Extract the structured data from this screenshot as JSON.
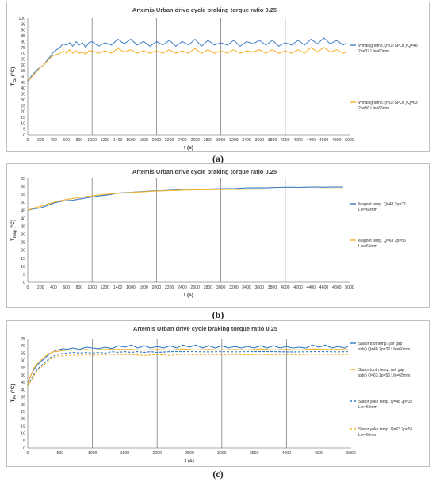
{
  "captions": [
    "(a)",
    "(b)",
    "(c)"
  ],
  "chart_data": [
    {
      "type": "line",
      "title": "Artemis Urban drive cycle braking torque ratio 0.25",
      "xlabel": "t (s)",
      "ylabel": "T_Cu (°C)",
      "xlim": [
        0,
        5000
      ],
      "ylim": [
        0,
        100
      ],
      "xticks": [
        0,
        200,
        400,
        600,
        800,
        1000,
        1200,
        1400,
        1600,
        1800,
        2000,
        2200,
        2400,
        2600,
        2800,
        3000,
        3200,
        3400,
        3600,
        3800,
        4000,
        4200,
        4400,
        4600,
        4800,
        5000
      ],
      "yticks": [
        0,
        5,
        10,
        15,
        20,
        25,
        30,
        35,
        40,
        45,
        50,
        55,
        60,
        65,
        70,
        75,
        80,
        85,
        90,
        95,
        100
      ],
      "vlines": [
        1000,
        2000,
        3000,
        4000
      ],
      "grid": false,
      "legend": "right",
      "series": [
        {
          "name": "Winding temp. (HOTSPOT) Q=48 2p=32 Lfe=60mm",
          "color": "#4a86c8",
          "x": [
            0,
            50,
            100,
            150,
            200,
            250,
            300,
            350,
            400,
            450,
            500,
            550,
            600,
            650,
            700,
            750,
            800,
            850,
            900,
            950,
            1000,
            1100,
            1200,
            1300,
            1400,
            1500,
            1600,
            1700,
            1800,
            1900,
            2000,
            2100,
            2200,
            2300,
            2400,
            2500,
            2600,
            2700,
            2800,
            2900,
            3000,
            3100,
            3200,
            3300,
            3400,
            3500,
            3600,
            3700,
            3800,
            3900,
            4000,
            4100,
            4200,
            4300,
            4400,
            4500,
            4600,
            4700,
            4800,
            4900,
            4950
          ],
          "y": [
            46,
            50,
            53,
            56,
            58,
            60,
            64,
            67,
            71,
            73,
            75,
            78,
            77,
            79,
            76,
            80,
            77,
            79,
            75,
            79,
            80,
            76,
            79,
            77,
            82,
            78,
            82,
            77,
            80,
            76,
            80,
            77,
            81,
            76,
            80,
            77,
            82,
            76,
            81,
            77,
            79,
            77,
            81,
            76,
            80,
            78,
            81,
            77,
            81,
            76,
            79,
            77,
            81,
            77,
            82,
            78,
            83,
            78,
            81,
            77,
            79
          ]
        },
        {
          "name": "Winding temp. (HOTSPOT) Q=63 2p=56 Lfe=65mm",
          "color": "#f5b22e",
          "x": [
            0,
            50,
            100,
            150,
            200,
            250,
            300,
            350,
            400,
            450,
            500,
            550,
            600,
            650,
            700,
            750,
            800,
            850,
            900,
            950,
            1000,
            1100,
            1200,
            1300,
            1400,
            1500,
            1600,
            1700,
            1800,
            1900,
            2000,
            2100,
            2200,
            2300,
            2400,
            2500,
            2600,
            2700,
            2800,
            2900,
            3000,
            3100,
            3200,
            3300,
            3400,
            3500,
            3600,
            3700,
            3800,
            3900,
            4000,
            4100,
            4200,
            4300,
            4400,
            4500,
            4600,
            4700,
            4800,
            4900,
            4950
          ],
          "y": [
            45,
            49,
            52,
            55,
            58,
            60,
            63,
            66,
            68,
            69,
            70,
            72,
            70,
            73,
            70,
            72,
            70,
            71,
            69,
            72,
            72,
            70,
            72,
            70,
            74,
            71,
            73,
            70,
            72,
            70,
            72,
            70,
            73,
            70,
            72,
            70,
            74,
            70,
            73,
            70,
            72,
            70,
            73,
            70,
            72,
            71,
            73,
            70,
            73,
            70,
            72,
            70,
            73,
            70,
            75,
            71,
            75,
            71,
            73,
            70,
            71
          ]
        }
      ]
    },
    {
      "type": "line",
      "title": "Artemis Urban drive cycle braking torque ratio 0.25",
      "xlabel": "t (s)",
      "ylabel": "T_mag (°C)",
      "xlim": [
        0,
        5000
      ],
      "ylim": [
        0,
        65
      ],
      "xticks": [
        0,
        200,
        400,
        600,
        800,
        1000,
        1200,
        1400,
        1600,
        1800,
        2000,
        2200,
        2400,
        2600,
        2800,
        3000,
        3200,
        3400,
        3600,
        3800,
        4000,
        4200,
        4400,
        4600,
        4800,
        5000
      ],
      "yticks": [
        0,
        5,
        10,
        15,
        20,
        25,
        30,
        35,
        40,
        45,
        50,
        55,
        60,
        65
      ],
      "vlines": [
        1000,
        2000,
        3000,
        4000
      ],
      "grid": false,
      "legend": "right",
      "series": [
        {
          "name": "Magnet temp. Q=48 2p=32 Lfe=60mm",
          "color": "#3b7bbf",
          "x": [
            0,
            100,
            200,
            300,
            400,
            500,
            600,
            700,
            800,
            900,
            1000,
            1100,
            1200,
            1300,
            1400,
            1500,
            1600,
            1700,
            1800,
            1900,
            2000,
            2100,
            2200,
            2300,
            2400,
            2500,
            2600,
            2700,
            2800,
            2900,
            3000,
            3100,
            3200,
            3300,
            3400,
            3500,
            3600,
            3700,
            3800,
            3900,
            4000,
            4100,
            4200,
            4300,
            4400,
            4500,
            4600,
            4700,
            4800,
            4900
          ],
          "y": [
            45,
            46,
            46.5,
            48,
            49.5,
            50.5,
            51,
            51.3,
            52,
            52.7,
            53.3,
            54,
            54.4,
            55,
            55.8,
            56,
            56.2,
            56.5,
            56.8,
            57,
            57.2,
            57.3,
            57.5,
            57.8,
            58.2,
            58.2,
            58,
            58.3,
            58.3,
            58.4,
            58.5,
            58.5,
            58.6,
            58.8,
            59,
            59,
            59.1,
            59,
            59.2,
            59.3,
            59.4,
            59.4,
            59.3,
            59.4,
            59.5,
            59.5,
            59.4,
            59.5,
            59.5,
            59.5
          ]
        },
        {
          "name": "Magnet temp. Q=63 2p=56 Lfe=65mm",
          "color": "#f5b22e",
          "x": [
            0,
            100,
            200,
            300,
            400,
            500,
            600,
            700,
            800,
            900,
            1000,
            1100,
            1200,
            1300,
            1400,
            1500,
            1600,
            1700,
            1800,
            1900,
            2000,
            2200,
            2400,
            2600,
            2800,
            3000,
            3200,
            3400,
            3600,
            3800,
            4000,
            4200,
            4400,
            4600,
            4800,
            4900
          ],
          "y": [
            45,
            46.5,
            47.5,
            48.8,
            50,
            51,
            51.8,
            52.4,
            53,
            53.6,
            54.1,
            54.6,
            55,
            55.3,
            55.6,
            55.9,
            56.1,
            56.4,
            56.6,
            56.8,
            57,
            57.3,
            57.6,
            57.8,
            57.9,
            58,
            58.1,
            58.2,
            58.2,
            58.3,
            58.3,
            58.3,
            58.3,
            58.4,
            58.4,
            58.4
          ]
        }
      ]
    },
    {
      "type": "line",
      "title": "Artemis Urban drive cycle braking torque ratio 0.25",
      "xlabel": "t (s)",
      "ylabel": "T_Fe (°C)",
      "xlim": [
        0,
        5000
      ],
      "ylim": [
        0,
        75
      ],
      "xticks": [
        0,
        500,
        1000,
        1500,
        2000,
        2500,
        3000,
        3500,
        4000,
        4500,
        5000
      ],
      "yticks": [
        0,
        5,
        10,
        15,
        20,
        25,
        30,
        35,
        40,
        45,
        50,
        55,
        60,
        65,
        70,
        75
      ],
      "vlines": [
        1000,
        2000,
        3000,
        4000
      ],
      "grid": false,
      "legend": "right",
      "series": [
        {
          "name": "Stator toot temp. (air gap side) Q=48 2p=32 Lfe=60mm",
          "color": "#2f78c4",
          "dash": "",
          "x": [
            0,
            50,
            100,
            150,
            200,
            250,
            300,
            350,
            400,
            450,
            500,
            550,
            600,
            700,
            800,
            900,
            1000,
            1100,
            1200,
            1300,
            1400,
            1500,
            1600,
            1700,
            1800,
            1900,
            2000,
            2100,
            2200,
            2300,
            2400,
            2500,
            2600,
            2700,
            2800,
            2900,
            3000,
            3100,
            3200,
            3300,
            3400,
            3500,
            3600,
            3700,
            3800,
            3900,
            4000,
            4100,
            4200,
            4300,
            4400,
            4500,
            4600,
            4700,
            4800,
            4900,
            4950
          ],
          "y": [
            45,
            50,
            54,
            57,
            59,
            61,
            63,
            65,
            66,
            67,
            67.5,
            68,
            67.5,
            68.5,
            67.5,
            69,
            68.5,
            68,
            69,
            68,
            70,
            69,
            70.5,
            68.5,
            70,
            68.5,
            69.5,
            68.5,
            70,
            68.5,
            70.5,
            69,
            70.5,
            68.5,
            70,
            68.5,
            70,
            68.5,
            69.5,
            68.5,
            69.5,
            68.5,
            70,
            68.5,
            70,
            68.5,
            69.5,
            68.5,
            69,
            68.5,
            70.5,
            69,
            70.5,
            68.5,
            69.5,
            68.5,
            69.5
          ]
        },
        {
          "name": "Stator tooth temp. (air gap side) Q=63 2p=56 Lfe=65mm",
          "color": "#f5b22e",
          "dash": "",
          "x": [
            0,
            50,
            100,
            150,
            200,
            250,
            300,
            350,
            400,
            450,
            500,
            600,
            700,
            800,
            900,
            1000,
            1200,
            1400,
            1600,
            1800,
            2000,
            2200,
            2400,
            2600,
            2800,
            3000,
            3200,
            3400,
            3600,
            3800,
            4000,
            4200,
            4400,
            4600,
            4800,
            4950
          ],
          "y": [
            44,
            50,
            55,
            58,
            60,
            62,
            64,
            65,
            66,
            66,
            66.5,
            67,
            67.2,
            67,
            67.5,
            67,
            67.5,
            67.5,
            67.5,
            67,
            67.5,
            67,
            67.8,
            67.2,
            67.5,
            67.2,
            67.5,
            67.2,
            67.8,
            67.2,
            67.5,
            67.2,
            67.8,
            67.5,
            67.5,
            67.5
          ]
        },
        {
          "name": "Stator yoke temp. Q=48 2p=32 Lfe=60mm",
          "color": "#2f78c4",
          "dash": "3,2",
          "x": [
            0,
            50,
            100,
            150,
            200,
            250,
            300,
            350,
            400,
            450,
            500,
            600,
            700,
            800,
            900,
            1000,
            1100,
            1200,
            1300,
            1400,
            1500,
            1600,
            1700,
            1800,
            1900,
            2000,
            2200,
            2400,
            2600,
            2800,
            3000,
            3200,
            3400,
            3600,
            3800,
            4000,
            4200,
            4400,
            4600,
            4800,
            4950
          ],
          "y": [
            43,
            47,
            51,
            54,
            56,
            58,
            60,
            62,
            63,
            64,
            64.5,
            65,
            65.5,
            65,
            65.5,
            65,
            65.5,
            65,
            66,
            65.5,
            66,
            65.5,
            66,
            65.5,
            66,
            65.5,
            66,
            66,
            66,
            65.8,
            66,
            65.8,
            66,
            66,
            66,
            65.8,
            65.8,
            66,
            66,
            65.8,
            66
          ]
        },
        {
          "name": "Stator yoke temp. Q=63 2p=56 Lfe=65mm",
          "color": "#f5b22e",
          "dash": "3,2",
          "x": [
            0,
            50,
            100,
            150,
            200,
            250,
            300,
            350,
            400,
            450,
            500,
            600,
            700,
            800,
            900,
            1000,
            1200,
            1400,
            1600,
            1800,
            2000,
            2200,
            2400,
            2600,
            2800,
            3000,
            3200,
            3400,
            3600,
            3800,
            4000,
            4200,
            4400,
            4600,
            4800,
            4950
          ],
          "y": [
            42,
            46,
            50,
            53,
            55,
            57,
            59,
            61,
            62,
            63,
            63,
            63.5,
            63.5,
            63.5,
            64,
            63.5,
            64,
            64,
            64,
            63.5,
            64,
            63.5,
            64.2,
            63.8,
            64,
            63.8,
            64,
            63.8,
            64.2,
            63.8,
            64,
            63.8,
            64.2,
            64,
            64,
            64
          ]
        }
      ]
    }
  ]
}
